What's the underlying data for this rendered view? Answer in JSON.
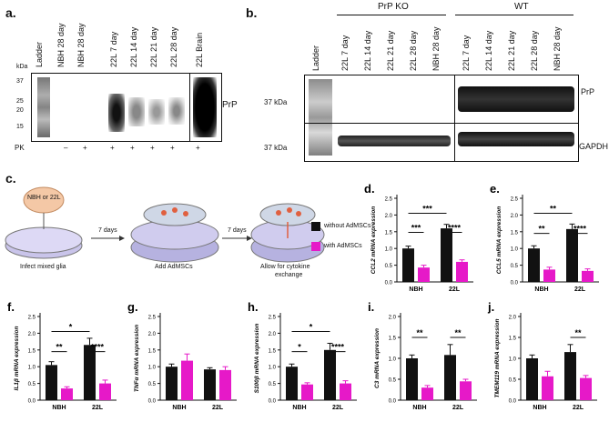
{
  "panels": {
    "a": {
      "letter": "a.",
      "lanes": [
        "Ladder",
        "NBH 28 day",
        "NBH 28 day",
        "22L 7 day",
        "22L 14 day",
        "22L 21 day",
        "22L 28 day",
        "22L Brain"
      ],
      "kda_unit": "kDa",
      "kda_ticks": [
        "37",
        "25",
        "20",
        "15"
      ],
      "pk_label": "PK",
      "pk_marks": [
        "–",
        "+",
        "+",
        "+",
        "+",
        "+",
        "+"
      ],
      "band_label": "PrP"
    },
    "b": {
      "letter": "b.",
      "group_ko": "PrP KO",
      "group_wt": "WT",
      "ladder": "Ladder",
      "lanes_ko": [
        "22L 7 day",
        "22L 14 day",
        "22L 21 day",
        "22L 28 day",
        "NBH 28 day"
      ],
      "lanes_wt": [
        "22L 7 day",
        "22L 14 day",
        "22L 21 day",
        "22L 28 day",
        "NBH 28 day"
      ],
      "size_top": "37 kDa",
      "size_bottom": "37 kDa",
      "band_top": "PrP",
      "band_bottom": "GAPDH"
    },
    "c": {
      "letter": "c.",
      "inoculum": "NBH or 22L",
      "step1": "Infect mixed glia",
      "arrow1": "7 days",
      "step2": "Add AdMSCs",
      "arrow2": "7 days",
      "step3a": "Allow for cytokine",
      "step3b": "exchange",
      "legend_without": "without AdMSCs",
      "legend_with": "with AdMSCs"
    }
  },
  "colors": {
    "without": "#111111",
    "with": "#e619c8"
  },
  "chart_data": [
    {
      "letter": "d.",
      "type": "bar",
      "ylabel": "CCL2 mRNA expression",
      "categories": [
        "NBH",
        "22L"
      ],
      "ylim": [
        0,
        2.5
      ],
      "yticks": [
        "0.0",
        "0.5",
        "1.0",
        "1.5",
        "2.0",
        "2.5"
      ],
      "series": [
        {
          "name": "without AdMSCs",
          "values": [
            1.0,
            1.6
          ],
          "err": [
            0.07,
            0.12
          ]
        },
        {
          "name": "with AdMSCs",
          "values": [
            0.43,
            0.6
          ],
          "err": [
            0.07,
            0.06
          ]
        }
      ],
      "sig": [
        {
          "label": "***",
          "a": [
            0,
            0
          ],
          "b": [
            0,
            1
          ],
          "level": 1.48
        },
        {
          "label": "****",
          "a": [
            1,
            0
          ],
          "b": [
            1,
            1
          ],
          "level": 1.48
        },
        {
          "label": "***",
          "a": [
            0,
            0
          ],
          "b": [
            1,
            0
          ],
          "level": 2.05
        }
      ]
    },
    {
      "letter": "e.",
      "type": "bar",
      "ylabel": "CCL5 mRNA expression",
      "categories": [
        "NBH",
        "22L"
      ],
      "ylim": [
        0,
        2.5
      ],
      "yticks": [
        "0.0",
        "0.5",
        "1.0",
        "1.5",
        "2.0",
        "2.5"
      ],
      "series": [
        {
          "name": "without AdMSCs",
          "values": [
            1.0,
            1.58
          ],
          "err": [
            0.08,
            0.15
          ]
        },
        {
          "name": "with AdMSCs",
          "values": [
            0.37,
            0.33
          ],
          "err": [
            0.07,
            0.06
          ]
        }
      ],
      "sig": [
        {
          "label": "**",
          "a": [
            0,
            0
          ],
          "b": [
            0,
            1
          ],
          "level": 1.45
        },
        {
          "label": "****",
          "a": [
            1,
            0
          ],
          "b": [
            1,
            1
          ],
          "level": 1.45
        },
        {
          "label": "**",
          "a": [
            0,
            0
          ],
          "b": [
            1,
            0
          ],
          "level": 2.05
        }
      ]
    },
    {
      "letter": "f.",
      "type": "bar",
      "ylabel": "IL1β mRNA expression",
      "categories": [
        "NBH",
        "22L"
      ],
      "ylim": [
        0,
        2.5
      ],
      "yticks": [
        "0.0",
        "0.5",
        "1.0",
        "1.5",
        "2.0",
        "2.5"
      ],
      "series": [
        {
          "name": "without AdMSCs",
          "values": [
            1.05,
            1.65
          ],
          "err": [
            0.1,
            0.2
          ]
        },
        {
          "name": "with AdMSCs",
          "values": [
            0.35,
            0.5
          ],
          "err": [
            0.05,
            0.1
          ]
        }
      ],
      "sig": [
        {
          "label": "**",
          "a": [
            0,
            0
          ],
          "b": [
            0,
            1
          ],
          "level": 1.45
        },
        {
          "label": "****",
          "a": [
            1,
            0
          ],
          "b": [
            1,
            1
          ],
          "level": 1.45
        },
        {
          "label": "*",
          "a": [
            0,
            0
          ],
          "b": [
            1,
            0
          ],
          "level": 2.05
        }
      ]
    },
    {
      "letter": "g.",
      "type": "bar",
      "ylabel": "TNFα mRNA expression",
      "categories": [
        "NBH",
        "22L"
      ],
      "ylim": [
        0,
        2.5
      ],
      "yticks": [
        "0.0",
        "0.5",
        "1.0",
        "1.5",
        "2.0",
        "2.5"
      ],
      "series": [
        {
          "name": "without AdMSCs",
          "values": [
            1.0,
            0.92
          ],
          "err": [
            0.08,
            0.05
          ]
        },
        {
          "name": "with AdMSCs",
          "values": [
            1.18,
            0.9
          ],
          "err": [
            0.2,
            0.1
          ]
        }
      ],
      "sig": []
    },
    {
      "letter": "h.",
      "type": "bar",
      "ylabel": "S100β mRNA expression",
      "categories": [
        "NBH",
        "22L"
      ],
      "ylim": [
        0,
        2.5
      ],
      "yticks": [
        "0.0",
        "0.5",
        "1.0",
        "1.5",
        "2.0",
        "2.5"
      ],
      "series": [
        {
          "name": "without AdMSCs",
          "values": [
            1.0,
            1.5
          ],
          "err": [
            0.08,
            0.2
          ]
        },
        {
          "name": "with AdMSCs",
          "values": [
            0.47,
            0.5
          ],
          "err": [
            0.05,
            0.08
          ]
        }
      ],
      "sig": [
        {
          "label": "*",
          "a": [
            0,
            0
          ],
          "b": [
            0,
            1
          ],
          "level": 1.45
        },
        {
          "label": "****",
          "a": [
            1,
            0
          ],
          "b": [
            1,
            1
          ],
          "level": 1.45
        },
        {
          "label": "*",
          "a": [
            0,
            0
          ],
          "b": [
            1,
            0
          ],
          "level": 2.05
        }
      ]
    },
    {
      "letter": "i.",
      "type": "bar",
      "ylabel": "C3 mRNA expression",
      "categories": [
        "NBH",
        "22L"
      ],
      "ylim": [
        0,
        2.0
      ],
      "yticks": [
        "0.0",
        "0.5",
        "1.0",
        "1.5",
        "2.0"
      ],
      "series": [
        {
          "name": "without AdMSCs",
          "values": [
            1.0,
            1.08
          ],
          "err": [
            0.08,
            0.25
          ]
        },
        {
          "name": "with AdMSCs",
          "values": [
            0.3,
            0.45
          ],
          "err": [
            0.05,
            0.05
          ]
        }
      ],
      "sig": [
        {
          "label": "**",
          "a": [
            0,
            0
          ],
          "b": [
            0,
            1
          ],
          "level": 1.5
        },
        {
          "label": "**",
          "a": [
            1,
            0
          ],
          "b": [
            1,
            1
          ],
          "level": 1.5
        }
      ]
    },
    {
      "letter": "j.",
      "type": "bar",
      "ylabel": "TMEM119 mRNA expression",
      "categories": [
        "NBH",
        "22L"
      ],
      "ylim": [
        0,
        2.0
      ],
      "yticks": [
        "0.0",
        "0.5",
        "1.0",
        "1.5",
        "2.0"
      ],
      "series": [
        {
          "name": "without AdMSCs",
          "values": [
            1.0,
            1.15
          ],
          "err": [
            0.08,
            0.18
          ]
        },
        {
          "name": "with AdMSCs",
          "values": [
            0.57,
            0.53
          ],
          "err": [
            0.12,
            0.06
          ]
        }
      ],
      "sig": [
        {
          "label": "**",
          "a": [
            1,
            0
          ],
          "b": [
            1,
            1
          ],
          "level": 1.5
        }
      ]
    }
  ]
}
